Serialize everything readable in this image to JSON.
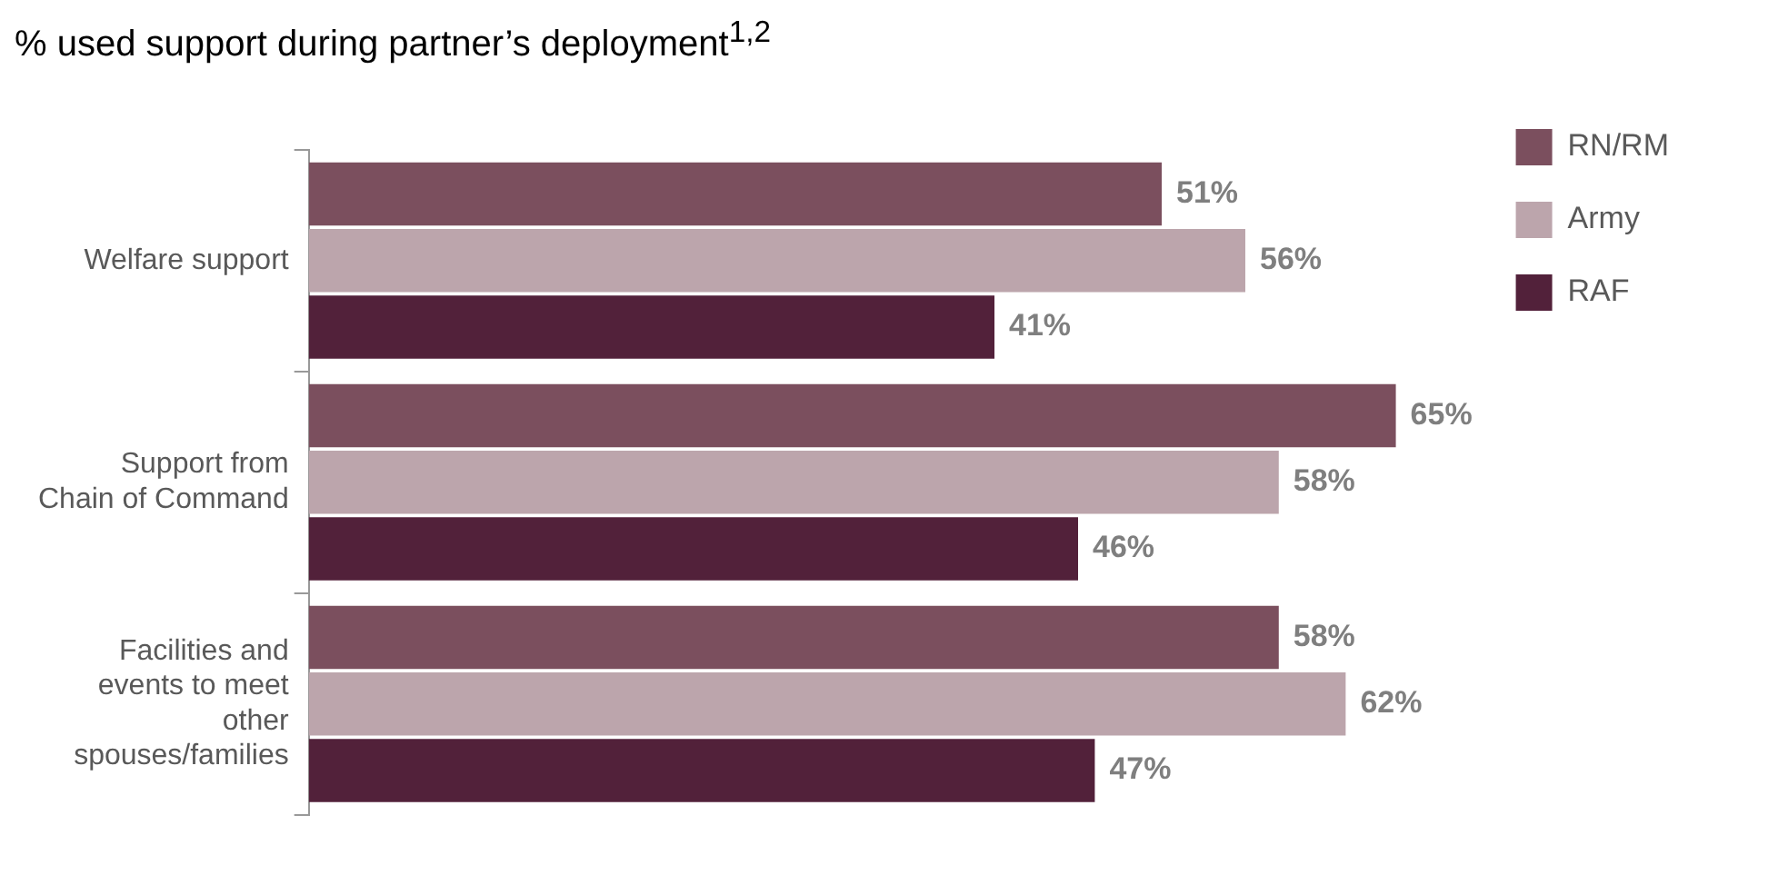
{
  "chart_data": {
    "type": "bar",
    "orientation": "horizontal",
    "title": "% used support during partner’s deployment$^{1,2}$",
    "categories": [
      "Welfare support",
      "Support from Chain of Command",
      "Facilities and events to meet other spouses/families"
    ],
    "series": [
      {
        "name": "RN/RM",
        "color": "#7b4f5e",
        "values": [
          51,
          65,
          58
        ],
        "value_labels": [
          "51%",
          "65%",
          "58%"
        ]
      },
      {
        "name": "Army",
        "color": "#bca5ac",
        "values": [
          56,
          58,
          62
        ],
        "value_labels": [
          "56%",
          "58%",
          "62%"
        ]
      },
      {
        "name": "RAF",
        "color": "#52213a",
        "values": [
          41,
          46,
          47
        ],
        "value_labels": [
          "41%",
          "46%",
          "47%"
        ]
      }
    ],
    "legend": "right",
    "tick_labels": "y"
  }
}
